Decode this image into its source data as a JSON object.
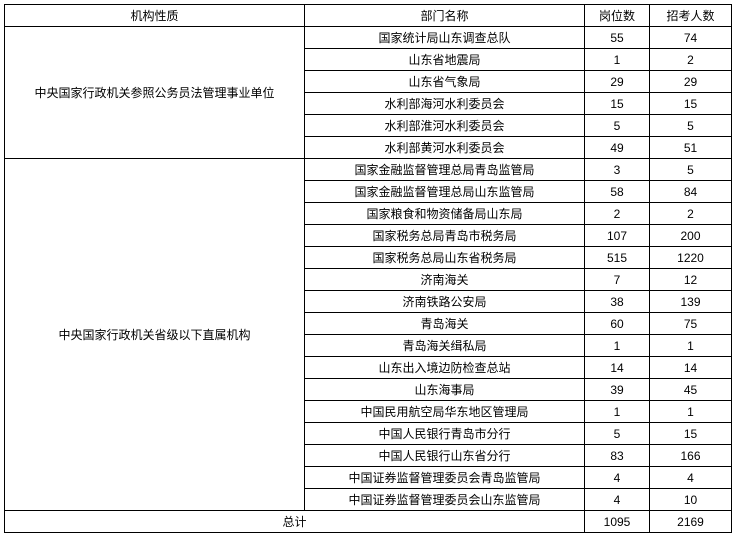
{
  "headers": {
    "nature": "机构性质",
    "department": "部门名称",
    "posts": "岗位数",
    "recruits": "招考人数"
  },
  "groups": [
    {
      "nature": "中央国家行政机关参照公务员法管理事业单位",
      "rows": [
        {
          "dept": "国家统计局山东调查总队",
          "posts": 55,
          "recruits": 74
        },
        {
          "dept": "山东省地震局",
          "posts": 1,
          "recruits": 2
        },
        {
          "dept": "山东省气象局",
          "posts": 29,
          "recruits": 29
        },
        {
          "dept": "水利部海河水利委员会",
          "posts": 15,
          "recruits": 15
        },
        {
          "dept": "水利部淮河水利委员会",
          "posts": 5,
          "recruits": 5
        },
        {
          "dept": "水利部黄河水利委员会",
          "posts": 49,
          "recruits": 51
        }
      ]
    },
    {
      "nature": "中央国家行政机关省级以下直属机构",
      "rows": [
        {
          "dept": "国家金融监督管理总局青岛监管局",
          "posts": 3,
          "recruits": 5
        },
        {
          "dept": "国家金融监督管理总局山东监管局",
          "posts": 58,
          "recruits": 84
        },
        {
          "dept": "国家粮食和物资储备局山东局",
          "posts": 2,
          "recruits": 2
        },
        {
          "dept": "国家税务总局青岛市税务局",
          "posts": 107,
          "recruits": 200
        },
        {
          "dept": "国家税务总局山东省税务局",
          "posts": 515,
          "recruits": 1220
        },
        {
          "dept": "济南海关",
          "posts": 7,
          "recruits": 12
        },
        {
          "dept": "济南铁路公安局",
          "posts": 38,
          "recruits": 139
        },
        {
          "dept": "青岛海关",
          "posts": 60,
          "recruits": 75
        },
        {
          "dept": "青岛海关缉私局",
          "posts": 1,
          "recruits": 1
        },
        {
          "dept": "山东出入境边防检查总站",
          "posts": 14,
          "recruits": 14
        },
        {
          "dept": "山东海事局",
          "posts": 39,
          "recruits": 45
        },
        {
          "dept": "中国民用航空局华东地区管理局",
          "posts": 1,
          "recruits": 1
        },
        {
          "dept": "中国人民银行青岛市分行",
          "posts": 5,
          "recruits": 15
        },
        {
          "dept": "中国人民银行山东省分行",
          "posts": 83,
          "recruits": 166
        },
        {
          "dept": "中国证券监督管理委员会青岛监管局",
          "posts": 4,
          "recruits": 4
        },
        {
          "dept": "中国证券监督管理委员会山东监管局",
          "posts": 4,
          "recruits": 10
        }
      ]
    }
  ],
  "total": {
    "label": "总计",
    "posts": 1095,
    "recruits": 2169
  }
}
